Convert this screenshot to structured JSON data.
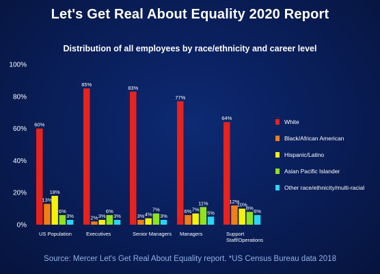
{
  "title": "Let's Get Real About Equality 2020 Report",
  "subtitle": "Distribution of all employees by race/ethnicity and career level",
  "source": "Source: Mercer Let's Get Real About Equality report. *US Census Bureau data 2018",
  "colors": {
    "background": "#0a1f5c",
    "white_series": "#e8221d",
    "black_series": "#f07f16",
    "hispanic_series": "#f5f20a",
    "asian_series": "#8fe31c",
    "other_series": "#2ad6f5"
  },
  "chart_data": {
    "type": "bar",
    "categories": [
      "US Population",
      "Executives",
      "Senior Managers",
      "Managers",
      "Support Staff/Operations"
    ],
    "category_lines": [
      [
        "US Population"
      ],
      [
        "Executives"
      ],
      [
        "Senior Managers"
      ],
      [
        "Managers"
      ],
      [
        "Support",
        "Staff/Operations"
      ]
    ],
    "series": [
      {
        "name": "White",
        "values": [
          60,
          85,
          83,
          77,
          64
        ],
        "color": "#e8221d"
      },
      {
        "name": "Black/African American",
        "values": [
          13,
          2,
          3,
          6,
          12
        ],
        "color": "#f07f16"
      },
      {
        "name": "Hispanic/Latino",
        "values": [
          18,
          3,
          4,
          7,
          10
        ],
        "color": "#f5f20a"
      },
      {
        "name": "Asian Pacific Islander",
        "values": [
          6,
          6,
          7,
          11,
          8
        ],
        "color": "#8fe31c"
      },
      {
        "name": "Other race/ethnicity/multi-racial",
        "values": [
          3,
          3,
          3,
          5,
          6
        ],
        "color": "#2ad6f5"
      }
    ],
    "yticks": [
      "0%",
      "20%",
      "40%",
      "60%",
      "80%",
      "100%"
    ],
    "ylim": [
      0,
      100
    ],
    "ylabel": "",
    "xlabel": "",
    "grid": false,
    "legend_position": "right"
  }
}
